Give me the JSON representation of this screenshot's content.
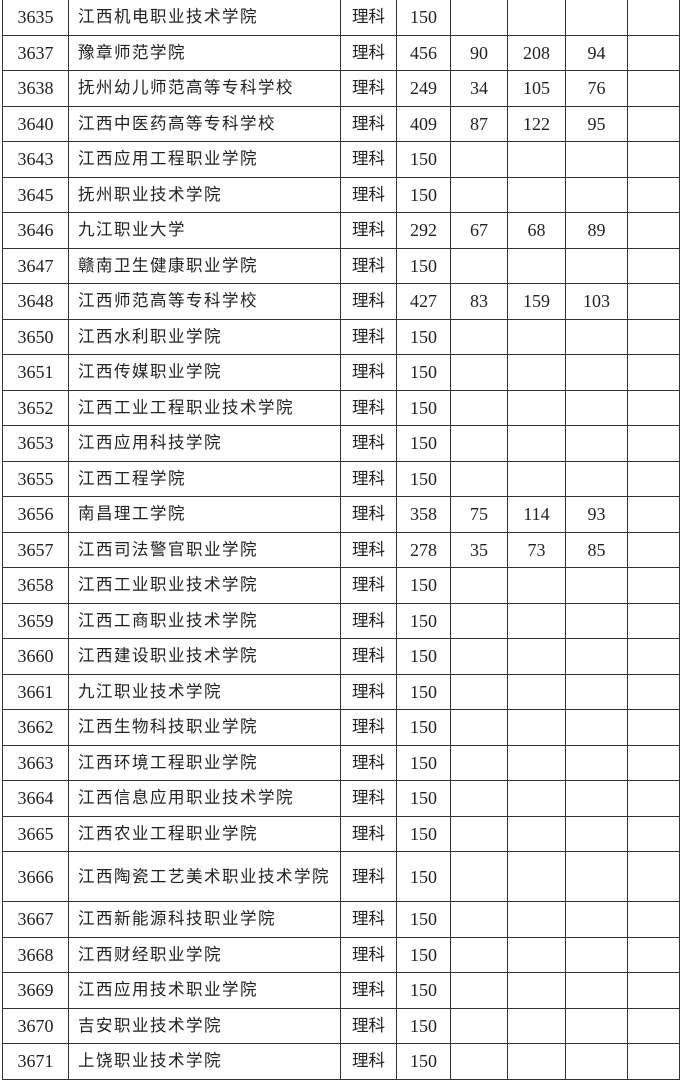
{
  "table": {
    "rows": [
      {
        "code": "3635",
        "name": "江西机电职业技术学院",
        "type": "理科",
        "plan": "150",
        "c1": "",
        "c2": "",
        "c3": "",
        "c4": ""
      },
      {
        "code": "3637",
        "name": "豫章师范学院",
        "type": "理科",
        "plan": "456",
        "c1": "90",
        "c2": "208",
        "c3": "94",
        "c4": ""
      },
      {
        "code": "3638",
        "name": "抚州幼儿师范高等专科学校",
        "type": "理科",
        "plan": "249",
        "c1": "34",
        "c2": "105",
        "c3": "76",
        "c4": ""
      },
      {
        "code": "3640",
        "name": "江西中医药高等专科学校",
        "type": "理科",
        "plan": "409",
        "c1": "87",
        "c2": "122",
        "c3": "95",
        "c4": ""
      },
      {
        "code": "3643",
        "name": "江西应用工程职业学院",
        "type": "理科",
        "plan": "150",
        "c1": "",
        "c2": "",
        "c3": "",
        "c4": ""
      },
      {
        "code": "3645",
        "name": "抚州职业技术学院",
        "type": "理科",
        "plan": "150",
        "c1": "",
        "c2": "",
        "c3": "",
        "c4": ""
      },
      {
        "code": "3646",
        "name": "九江职业大学",
        "type": "理科",
        "plan": "292",
        "c1": "67",
        "c2": "68",
        "c3": "89",
        "c4": ""
      },
      {
        "code": "3647",
        "name": "赣南卫生健康职业学院",
        "type": "理科",
        "plan": "150",
        "c1": "",
        "c2": "",
        "c3": "",
        "c4": ""
      },
      {
        "code": "3648",
        "name": "江西师范高等专科学校",
        "type": "理科",
        "plan": "427",
        "c1": "83",
        "c2": "159",
        "c3": "103",
        "c4": ""
      },
      {
        "code": "3650",
        "name": "江西水利职业学院",
        "type": "理科",
        "plan": "150",
        "c1": "",
        "c2": "",
        "c3": "",
        "c4": ""
      },
      {
        "code": "3651",
        "name": "江西传媒职业学院",
        "type": "理科",
        "plan": "150",
        "c1": "",
        "c2": "",
        "c3": "",
        "c4": ""
      },
      {
        "code": "3652",
        "name": "江西工业工程职业技术学院",
        "type": "理科",
        "plan": "150",
        "c1": "",
        "c2": "",
        "c3": "",
        "c4": ""
      },
      {
        "code": "3653",
        "name": "江西应用科技学院",
        "type": "理科",
        "plan": "150",
        "c1": "",
        "c2": "",
        "c3": "",
        "c4": ""
      },
      {
        "code": "3655",
        "name": "江西工程学院",
        "type": "理科",
        "plan": "150",
        "c1": "",
        "c2": "",
        "c3": "",
        "c4": ""
      },
      {
        "code": "3656",
        "name": "南昌理工学院",
        "type": "理科",
        "plan": "358",
        "c1": "75",
        "c2": "114",
        "c3": "93",
        "c4": ""
      },
      {
        "code": "3657",
        "name": "江西司法警官职业学院",
        "type": "理科",
        "plan": "278",
        "c1": "35",
        "c2": "73",
        "c3": "85",
        "c4": ""
      },
      {
        "code": "3658",
        "name": "江西工业职业技术学院",
        "type": "理科",
        "plan": "150",
        "c1": "",
        "c2": "",
        "c3": "",
        "c4": ""
      },
      {
        "code": "3659",
        "name": "江西工商职业技术学院",
        "type": "理科",
        "plan": "150",
        "c1": "",
        "c2": "",
        "c3": "",
        "c4": ""
      },
      {
        "code": "3660",
        "name": "江西建设职业技术学院",
        "type": "理科",
        "plan": "150",
        "c1": "",
        "c2": "",
        "c3": "",
        "c4": ""
      },
      {
        "code": "3661",
        "name": "九江职业技术学院",
        "type": "理科",
        "plan": "150",
        "c1": "",
        "c2": "",
        "c3": "",
        "c4": ""
      },
      {
        "code": "3662",
        "name": "江西生物科技职业学院",
        "type": "理科",
        "plan": "150",
        "c1": "",
        "c2": "",
        "c3": "",
        "c4": ""
      },
      {
        "code": "3663",
        "name": "江西环境工程职业学院",
        "type": "理科",
        "plan": "150",
        "c1": "",
        "c2": "",
        "c3": "",
        "c4": ""
      },
      {
        "code": "3664",
        "name": "江西信息应用职业技术学院",
        "type": "理科",
        "plan": "150",
        "c1": "",
        "c2": "",
        "c3": "",
        "c4": ""
      },
      {
        "code": "3665",
        "name": "江西农业工程职业学院",
        "type": "理科",
        "plan": "150",
        "c1": "",
        "c2": "",
        "c3": "",
        "c4": ""
      },
      {
        "code": "3666",
        "name": "江西陶瓷工艺美术职业技术学院",
        "type": "理科",
        "plan": "150",
        "c1": "",
        "c2": "",
        "c3": "",
        "c4": ""
      },
      {
        "code": "3667",
        "name": "江西新能源科技职业学院",
        "type": "理科",
        "plan": "150",
        "c1": "",
        "c2": "",
        "c3": "",
        "c4": ""
      },
      {
        "code": "3668",
        "name": "江西财经职业学院",
        "type": "理科",
        "plan": "150",
        "c1": "",
        "c2": "",
        "c3": "",
        "c4": ""
      },
      {
        "code": "3669",
        "name": "江西应用技术职业学院",
        "type": "理科",
        "plan": "150",
        "c1": "",
        "c2": "",
        "c3": "",
        "c4": ""
      },
      {
        "code": "3670",
        "name": "吉安职业技术学院",
        "type": "理科",
        "plan": "150",
        "c1": "",
        "c2": "",
        "c3": "",
        "c4": ""
      },
      {
        "code": "3671",
        "name": "上饶职业技术学院",
        "type": "理科",
        "plan": "150",
        "c1": "",
        "c2": "",
        "c3": "",
        "c4": ""
      }
    ]
  }
}
